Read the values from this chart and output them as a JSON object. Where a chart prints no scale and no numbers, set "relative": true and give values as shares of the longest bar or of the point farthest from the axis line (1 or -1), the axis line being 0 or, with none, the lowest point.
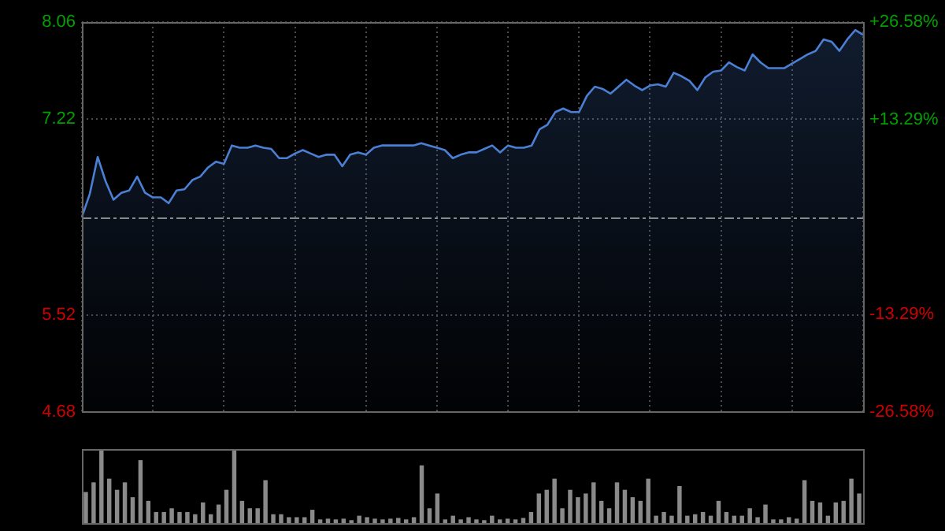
{
  "chart_data": [
    {
      "type": "area",
      "categories": [
        null,
        null,
        null,
        null,
        null,
        null,
        null,
        null,
        null,
        null,
        null,
        null,
        null,
        null,
        null,
        null,
        null,
        null,
        null,
        null,
        null,
        null,
        null,
        null,
        null,
        null,
        null,
        null,
        null,
        null,
        null,
        null,
        null,
        null,
        null,
        null,
        null,
        null,
        null,
        null,
        null,
        null,
        null,
        null,
        null,
        null,
        null,
        null,
        null,
        null,
        null,
        null,
        null,
        null,
        null,
        null,
        null,
        null,
        null,
        null,
        null,
        null,
        null,
        null,
        null,
        null,
        null,
        null,
        null,
        null,
        null,
        null,
        null,
        null,
        null,
        null,
        null,
        null,
        null,
        null,
        null,
        null,
        null,
        null,
        null,
        null,
        null,
        null,
        null,
        null,
        null,
        null,
        null,
        null,
        null,
        null,
        null,
        null,
        null,
        null
      ],
      "series": [
        {
          "color": "#4a7fd4",
          "values": [
            6.37,
            6.57,
            6.89,
            6.68,
            6.52,
            6.58,
            6.6,
            6.72,
            6.58,
            6.54,
            6.54,
            6.49,
            6.6,
            6.61,
            6.69,
            6.72,
            6.8,
            6.85,
            6.83,
            6.99,
            6.97,
            6.97,
            6.99,
            6.97,
            6.96,
            6.88,
            6.88,
            6.92,
            6.95,
            6.92,
            6.89,
            6.91,
            6.91,
            6.81,
            6.91,
            6.93,
            6.91,
            6.97,
            6.99,
            6.99,
            6.99,
            6.99,
            6.99,
            7.01,
            6.99,
            6.97,
            6.95,
            6.88,
            6.91,
            6.93,
            6.93,
            6.96,
            6.99,
            6.93,
            6.99,
            6.97,
            6.97,
            6.99,
            7.13,
            7.17,
            7.28,
            7.31,
            7.28,
            7.28,
            7.42,
            7.5,
            7.48,
            7.44,
            7.5,
            7.56,
            7.51,
            7.47,
            7.51,
            7.52,
            7.5,
            7.62,
            7.59,
            7.55,
            7.47,
            7.58,
            7.63,
            7.64,
            7.71,
            7.67,
            7.64,
            7.78,
            7.71,
            7.66,
            7.66,
            7.66,
            7.7,
            7.74,
            7.78,
            7.81,
            7.91,
            7.89,
            7.81,
            7.91,
            7.99,
            7.95
          ]
        }
      ],
      "ylim": [
        4.68,
        8.06
      ],
      "yticks": [
        4.68,
        5.52,
        7.22,
        8.06
      ],
      "y2lim": [
        -26.58,
        26.58
      ],
      "y2ticks": [
        {
          "value": -26.58,
          "label": "-26.58%"
        },
        {
          "value": -13.29,
          "label": "-13.29%"
        },
        {
          "value": 13.29,
          "label": "+13.29%"
        },
        {
          "value": 26.58,
          "label": "+26.58%"
        }
      ],
      "ref_lines": [
        {
          "axis": "y",
          "value": 6.37,
          "color": "#888888",
          "line_style": "dashed"
        }
      ],
      "grid": true,
      "tick_labels": "y"
    },
    {
      "type": "bar",
      "relative": true,
      "color": "#8a8a8a",
      "tick_labels": false,
      "categories": [
        null,
        null,
        null,
        null,
        null,
        null,
        null,
        null,
        null,
        null,
        null,
        null,
        null,
        null,
        null,
        null,
        null,
        null,
        null,
        null,
        null,
        null,
        null,
        null,
        null,
        null,
        null,
        null,
        null,
        null,
        null,
        null,
        null,
        null,
        null,
        null,
        null,
        null,
        null,
        null,
        null,
        null,
        null,
        null,
        null,
        null,
        null,
        null,
        null,
        null,
        null,
        null,
        null,
        null,
        null,
        null,
        null,
        null,
        null,
        null,
        null,
        null,
        null,
        null,
        null,
        null,
        null,
        null,
        null,
        null,
        null,
        null,
        null,
        null,
        null,
        null,
        null,
        null,
        null,
        null,
        null,
        null,
        null,
        null,
        null,
        null,
        null,
        null,
        null,
        null,
        null,
        null,
        null,
        null,
        null,
        null,
        null,
        null,
        null,
        null
      ],
      "values": [
        0.42,
        0.55,
        1.0,
        0.6,
        0.45,
        0.55,
        0.35,
        0.85,
        0.3,
        0.15,
        0.15,
        0.2,
        0.15,
        0.15,
        0.12,
        0.28,
        0.12,
        0.25,
        0.45,
        1.0,
        0.3,
        0.2,
        0.2,
        0.58,
        0.12,
        0.12,
        0.08,
        0.08,
        0.08,
        0.18,
        0.05,
        0.06,
        0.05,
        0.06,
        0.04,
        0.1,
        0.08,
        0.06,
        0.05,
        0.06,
        0.07,
        0.05,
        0.08,
        0.78,
        0.2,
        0.4,
        0.05,
        0.1,
        0.05,
        0.08,
        0.05,
        0.04,
        0.1,
        0.05,
        0.06,
        0.05,
        0.07,
        0.15,
        0.4,
        0.45,
        0.6,
        0.2,
        0.45,
        0.35,
        0.4,
        0.55,
        0.3,
        0.2,
        0.55,
        0.45,
        0.35,
        0.3,
        0.6,
        0.1,
        0.15,
        0.1,
        0.5,
        0.1,
        0.12,
        0.15,
        0.1,
        0.3,
        0.15,
        0.1,
        0.1,
        0.2,
        0.08,
        0.25,
        0.05,
        0.05,
        0.08,
        0.06,
        0.58,
        0.3,
        0.28,
        0.1,
        0.28,
        0.3,
        0.6,
        0.4
      ]
    }
  ]
}
